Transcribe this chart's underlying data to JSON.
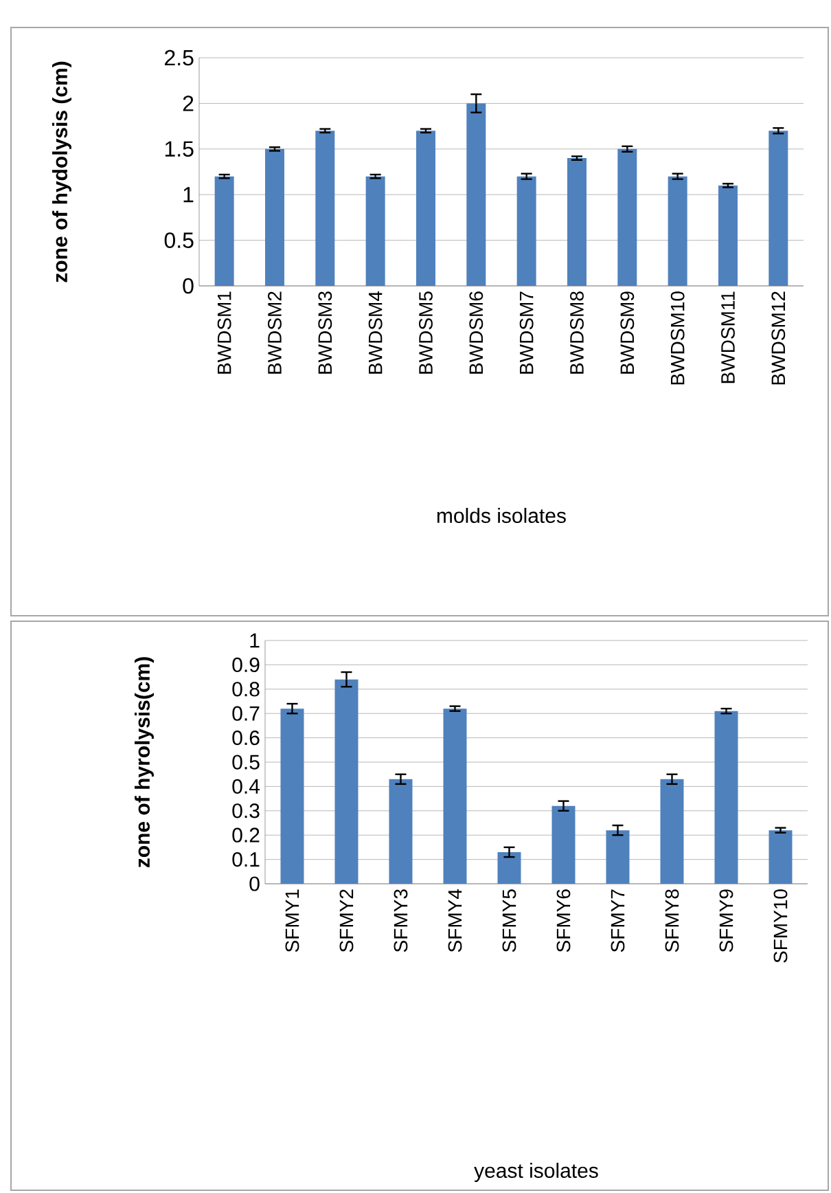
{
  "chart_data": [
    {
      "type": "bar",
      "xlabel": "molds isolates",
      "ylabel": "zone of hydolysis (cm)",
      "categories": [
        "BWDSM1",
        "BWDSM2",
        "BWDSM3",
        "BWDSM4",
        "BWDSM5",
        "BWDSM6",
        "BWDSM7",
        "BWDSM8",
        "BWDSM9",
        "BWDSM10",
        "BWDSM11",
        "BWDSM12"
      ],
      "values": [
        1.2,
        1.5,
        1.7,
        1.2,
        1.7,
        2.0,
        1.2,
        1.4,
        1.5,
        1.2,
        1.1,
        1.7
      ],
      "errors": [
        0.02,
        0.02,
        0.02,
        0.02,
        0.02,
        0.1,
        0.03,
        0.02,
        0.03,
        0.03,
        0.02,
        0.03
      ],
      "color": "#4f81bd",
      "ylim": [
        0,
        2.5
      ],
      "yticks": [
        0,
        0.5,
        1,
        1.5,
        2,
        2.5
      ],
      "grid": "y"
    },
    {
      "type": "bar",
      "xlabel": "yeast isolates",
      "ylabel": "zone of hyrolysis(cm)",
      "categories": [
        "SFMY1",
        "SFMY2",
        "SFMY3",
        "SFMY4",
        "SFMY5",
        "SFMY6",
        "SFMY7",
        "SFMY8",
        "SFMY9",
        "SFMY10"
      ],
      "values": [
        0.72,
        0.84,
        0.43,
        0.72,
        0.13,
        0.32,
        0.22,
        0.43,
        0.71,
        0.22
      ],
      "errors": [
        0.02,
        0.03,
        0.02,
        0.01,
        0.02,
        0.02,
        0.02,
        0.02,
        0.01,
        0.01
      ],
      "color": "#4f81bd",
      "ylim": [
        0,
        1
      ],
      "yticks": [
        0,
        0.1,
        0.2,
        0.3,
        0.4,
        0.5,
        0.6,
        0.7,
        0.8,
        0.9,
        1
      ],
      "grid": "y"
    }
  ]
}
